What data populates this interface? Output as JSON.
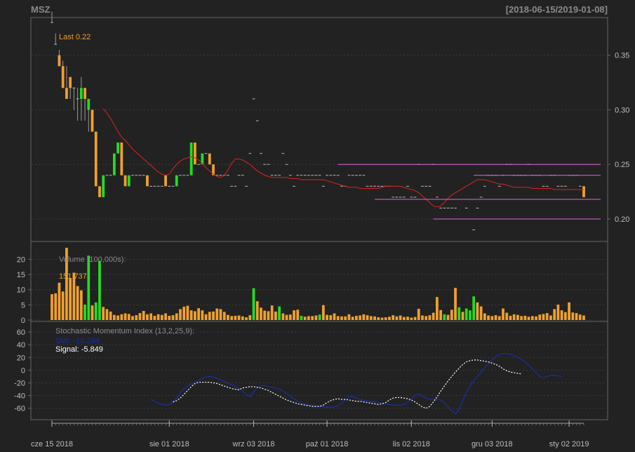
{
  "header": {
    "symbol": "MSZ",
    "date_range": "[2018-06-15/2019-01-08]"
  },
  "colors": {
    "background": "#222222",
    "panel_border": "#666666",
    "grid": "#3c3c3c",
    "up": "#22dd22",
    "down": "#f0a030",
    "ma_line": "#dd2222",
    "support_lines": "#dd66dd",
    "smi_line": "#1a2fa8",
    "signal_line": "#ffffff",
    "label_orange": "#f0a030",
    "label_grey": "#8a8a8a"
  },
  "chart_data": [
    {
      "type": "candlestick",
      "panel": "price",
      "last_label": "Last 0.22",
      "y_ticks": [
        "0.35",
        "0.30",
        "0.25",
        "0.20"
      ],
      "y_tick_values": [
        0.35,
        0.3,
        0.25,
        0.2
      ],
      "ylim": [
        0.182,
        0.38
      ],
      "n_bars": 146,
      "open": [
        0.38,
        0.36,
        0.35,
        0.34,
        0.32,
        0.33,
        0.32,
        0.31,
        0.31,
        0.32,
        0.3,
        0.3,
        0.28,
        0.23,
        0.22,
        0.24,
        0.24,
        0.24,
        0.26,
        0.27,
        0.24,
        0.23,
        0.24,
        0.24,
        0.24,
        0.24,
        0.24,
        0.23,
        0.23,
        0.23,
        0.23,
        0.24,
        0.23,
        0.23,
        0.23,
        0.24,
        0.24,
        0.24,
        0.24,
        0.27,
        0.25,
        0.25,
        0.26,
        0.26,
        0.25,
        0.24,
        0.24,
        0.24,
        0.24,
        0.23,
        0.23,
        0.24,
        0.24,
        0.23,
        0.26,
        0.31,
        0.29,
        0.26,
        0.25,
        0.25,
        0.24,
        0.24,
        0.24,
        0.26,
        0.25,
        0.24,
        0.23,
        0.24,
        0.24,
        0.24,
        0.24,
        0.24,
        0.24,
        0.24,
        0.23,
        0.24,
        0.24,
        0.24,
        0.24,
        0.23,
        0.23,
        0.24,
        0.24,
        0.24,
        0.24,
        0.24,
        0.23,
        0.23,
        0.23,
        0.23,
        0.23,
        0.23,
        0.23,
        0.22,
        0.22,
        0.22,
        0.22,
        0.23,
        0.22,
        0.22,
        0.25,
        0.23,
        0.23,
        0.23,
        0.25,
        0.22,
        0.21,
        0.21,
        0.21,
        0.21,
        0.21,
        0.2,
        0.2,
        0.21,
        0.2,
        0.19,
        0.21,
        0.22,
        0.23,
        0.24,
        0.24,
        0.24,
        0.23,
        0.24,
        0.25,
        0.25,
        0.24,
        0.24,
        0.24,
        0.24,
        0.25,
        0.24,
        0.24,
        0.24,
        0.23,
        0.23,
        0.24,
        0.24,
        0.23,
        0.23,
        0.23,
        0.24,
        0.24,
        0.24,
        0.23,
        0.23
      ],
      "close": [
        0.38,
        0.36,
        0.34,
        0.32,
        0.31,
        0.32,
        0.32,
        0.31,
        0.32,
        0.31,
        0.31,
        0.28,
        0.23,
        0.22,
        0.24,
        0.24,
        0.24,
        0.26,
        0.27,
        0.24,
        0.23,
        0.24,
        0.24,
        0.24,
        0.24,
        0.24,
        0.23,
        0.23,
        0.23,
        0.23,
        0.23,
        0.23,
        0.23,
        0.23,
        0.24,
        0.24,
        0.24,
        0.24,
        0.27,
        0.25,
        0.25,
        0.26,
        0.26,
        0.25,
        0.24,
        0.24,
        0.24,
        0.24,
        0.24,
        0.23,
        0.23,
        0.24,
        0.24,
        0.23,
        0.26,
        0.31,
        0.29,
        0.26,
        0.25,
        0.25,
        0.24,
        0.24,
        0.24,
        0.26,
        0.25,
        0.24,
        0.23,
        0.24,
        0.24,
        0.24,
        0.24,
        0.24,
        0.24,
        0.24,
        0.23,
        0.24,
        0.24,
        0.24,
        0.24,
        0.23,
        0.23,
        0.24,
        0.24,
        0.24,
        0.24,
        0.24,
        0.23,
        0.23,
        0.23,
        0.23,
        0.23,
        0.23,
        0.23,
        0.22,
        0.22,
        0.22,
        0.22,
        0.23,
        0.22,
        0.22,
        0.25,
        0.23,
        0.23,
        0.23,
        0.25,
        0.22,
        0.21,
        0.21,
        0.21,
        0.21,
        0.21,
        0.2,
        0.2,
        0.21,
        0.2,
        0.19,
        0.21,
        0.22,
        0.23,
        0.24,
        0.24,
        0.24,
        0.23,
        0.24,
        0.25,
        0.25,
        0.24,
        0.24,
        0.24,
        0.24,
        0.25,
        0.24,
        0.24,
        0.24,
        0.23,
        0.23,
        0.24,
        0.24,
        0.23,
        0.23,
        0.23,
        0.24,
        0.24,
        0.24,
        0.23,
        0.22
      ],
      "high_extra": [
        0.01,
        0.01,
        0.005,
        0.005,
        0.02,
        0.0,
        0.0,
        0.01,
        0.01,
        0.0,
        0.0,
        0.0,
        0.0,
        0.0,
        0.0,
        0.0,
        0.0,
        0.0,
        0.0,
        0.0,
        0.0,
        0.0,
        0.0,
        0.0,
        0.0,
        0.0,
        0.0,
        0.0,
        0.0,
        0.0,
        0.0,
        0.0,
        0.0,
        0.0,
        0.0,
        0.0,
        0.0,
        0.0,
        0.0,
        0.0,
        0.0,
        0.0,
        0.0,
        0.0,
        0.0,
        0.0,
        0.0,
        0.0,
        0.0,
        0.0,
        0.0,
        0.0,
        0.0,
        0.0,
        0.0,
        0.0,
        0.0,
        0.0,
        0.0,
        0.0,
        0.0,
        0.0,
        0.0,
        0.0,
        0.0,
        0.0,
        0.0,
        0.0,
        0.0,
        0.0,
        0.0,
        0.0,
        0.0,
        0.0,
        0.0,
        0.0,
        0.0,
        0.0,
        0.0,
        0.0,
        0.0,
        0.0,
        0.0,
        0.0,
        0.0,
        0.0,
        0.0,
        0.0,
        0.0,
        0.0,
        0.0,
        0.0,
        0.0,
        0.0,
        0.0,
        0.0,
        0.0,
        0.0,
        0.0,
        0.0,
        0.0,
        0.0,
        0.0,
        0.0,
        0.0,
        0.0,
        0.0,
        0.0,
        0.0,
        0.0,
        0.0,
        0.0,
        0.0,
        0.0,
        0.0,
        0.0,
        0.0,
        0.0,
        0.0,
        0.0,
        0.0,
        0.0,
        0.0,
        0.0,
        0.0,
        0.0,
        0.0,
        0.0,
        0.0,
        0.0,
        0.0,
        0.0,
        0.0,
        0.0,
        0.0,
        0.0,
        0.0,
        0.0,
        0.0,
        0.0,
        0.0,
        0.0,
        0.0,
        0.0,
        0.0,
        0.0
      ],
      "low_extra": [
        0.0,
        0.0,
        0.0,
        0.0,
        0.0,
        0.01,
        0.02,
        0.02,
        0.02,
        0.02,
        0.02,
        0.0,
        0.0,
        0.0,
        0.0,
        0.0,
        0.0,
        0.0,
        0.0,
        0.0,
        0.0,
        0.0,
        0.0,
        0.0,
        0.0,
        0.0,
        0.0,
        0.0,
        0.0,
        0.0,
        0.0,
        0.0,
        0.0,
        0.0,
        0.0,
        0.0,
        0.0,
        0.0,
        0.0,
        0.0,
        0.0,
        0.0,
        0.0,
        0.0,
        0.0,
        0.0,
        0.0,
        0.0,
        0.0,
        0.0,
        0.0,
        0.0,
        0.0,
        0.0,
        0.0,
        0.0,
        0.0,
        0.0,
        0.0,
        0.0,
        0.0,
        0.0,
        0.0,
        0.0,
        0.0,
        0.0,
        0.0,
        0.0,
        0.0,
        0.0,
        0.0,
        0.0,
        0.0,
        0.0,
        0.0,
        0.0,
        0.0,
        0.0,
        0.0,
        0.0,
        0.0,
        0.0,
        0.0,
        0.0,
        0.0,
        0.0,
        0.0,
        0.0,
        0.0,
        0.0,
        0.0,
        0.0,
        0.0,
        0.0,
        0.0,
        0.0,
        0.0,
        0.0,
        0.0,
        0.0,
        0.0,
        0.0,
        0.0,
        0.0,
        0.0,
        0.0,
        0.0,
        0.0,
        0.0,
        0.0,
        0.0,
        0.0,
        0.0,
        0.0,
        0.0,
        0.0,
        0.0,
        0.0,
        0.0,
        0.0,
        0.0,
        0.0,
        0.0,
        0.0,
        0.0,
        0.0,
        0.0,
        0.0,
        0.0,
        0.0,
        0.0,
        0.0,
        0.0,
        0.0,
        0.0,
        0.0,
        0.0,
        0.0,
        0.0,
        0.0,
        0.0,
        0.0,
        0.0,
        0.0,
        0.0,
        0.0
      ],
      "moving_average": {
        "start_bar": 14,
        "values": [
          0.301,
          0.297,
          0.292,
          0.286,
          0.28,
          0.275,
          0.272,
          0.268,
          0.264,
          0.261,
          0.258,
          0.255,
          0.252,
          0.249,
          0.246,
          0.243,
          0.241,
          0.24,
          0.241,
          0.246,
          0.25,
          0.253,
          0.255,
          0.256,
          0.257,
          0.256,
          0.254,
          0.251,
          0.247,
          0.244,
          0.241,
          0.239,
          0.238,
          0.24,
          0.245,
          0.251,
          0.255,
          0.255,
          0.254,
          0.252,
          0.25,
          0.247,
          0.244,
          0.242,
          0.24,
          0.239,
          0.238,
          0.238,
          0.238,
          0.238,
          0.238,
          0.237,
          0.237,
          0.237,
          0.236,
          0.236,
          0.236,
          0.236,
          0.236,
          0.236,
          0.236,
          0.235,
          0.234,
          0.233,
          0.232,
          0.231,
          0.23,
          0.229,
          0.229,
          0.229,
          0.228,
          0.228,
          0.228,
          0.228,
          0.228,
          0.228,
          0.229,
          0.23,
          0.23,
          0.23,
          0.23,
          0.23,
          0.229,
          0.228,
          0.227,
          0.226,
          0.224,
          0.221,
          0.218,
          0.215,
          0.212,
          0.211,
          0.212,
          0.215,
          0.219,
          0.222,
          0.224,
          0.226,
          0.228,
          0.23,
          0.232,
          0.234,
          0.236,
          0.236,
          0.236,
          0.235,
          0.234,
          0.233,
          0.232,
          0.232,
          0.231,
          0.23,
          0.229,
          0.229,
          0.229,
          0.229,
          0.229,
          0.228,
          0.228,
          0.228,
          0.228,
          0.228,
          0.228,
          0.227,
          0.227,
          0.227,
          0.227,
          0.227,
          0.227,
          0.227,
          0.227,
          0.227
        ]
      },
      "support_lines": [
        {
          "y": 0.25,
          "from_bar": 78,
          "to_bar": 145
        },
        {
          "y": 0.24,
          "from_bar": 115,
          "to_bar": 145
        },
        {
          "y": 0.218,
          "from_bar": 88,
          "to_bar": 145
        },
        {
          "y": 0.2,
          "from_bar": 104,
          "to_bar": 145
        }
      ]
    },
    {
      "type": "bar",
      "panel": "volume",
      "label": "Volume (100,000s):",
      "last_label": "151,737",
      "y_ticks": [
        "20",
        "15",
        "10",
        "5",
        "0"
      ],
      "y_tick_values": [
        20,
        15,
        10,
        5,
        0
      ],
      "ylim": [
        0,
        24.5
      ],
      "values": [
        8.5,
        8.8,
        12.3,
        9.4,
        23.8,
        13.8,
        15.6,
        11.2,
        9.8,
        5.1,
        21.2,
        4.8,
        5.8,
        19.5,
        4.3,
        3.6,
        2.8,
        1.7,
        1.5,
        1.9,
        2.2,
        2.0,
        1.3,
        1.6,
        2.3,
        3.0,
        1.9,
        2.2,
        1.4,
        1.9,
        1.7,
        2.2,
        1.4,
        1.6,
        2.2,
        3.6,
        4.4,
        4.7,
        3.2,
        2.9,
        3.9,
        3.2,
        1.9,
        2.7,
        2.8,
        3.8,
        3.6,
        2.7,
        1.7,
        1.3,
        1.4,
        1.5,
        1.2,
        0.9,
        1.6,
        10.5,
        6.2,
        4.1,
        3.1,
        2.9,
        4.8,
        2.8,
        4.5,
        2.2,
        1.7,
        1.8,
        3.2,
        3.4,
        1.4,
        1.1,
        1.3,
        1.3,
        1.5,
        1.8,
        4.9,
        1.7,
        1.6,
        2.2,
        1.3,
        1.2,
        1.2,
        1.9,
        1.1,
        1.4,
        1.5,
        1.9,
        1.6,
        1.3,
        1.2,
        0.9,
        0.8,
        0.9,
        1.1,
        1.6,
        1.2,
        1.5,
        1.0,
        1.1,
        0.8,
        1.0,
        3.7,
        1.5,
        1.3,
        1.6,
        2.4,
        7.6,
        3.3,
        1.9,
        1.7,
        3.4,
        10.6,
        4.2,
        2.7,
        3.8,
        3.2,
        7.8,
        5.8,
        4.5,
        2.2,
        1.5,
        1.3,
        1.6,
        1.3,
        3.8,
        2.4,
        1.4,
        1.9,
        1.7,
        1.3,
        1.4,
        1.1,
        1.3,
        1.2,
        1.8,
        2.0,
        2.3,
        1.5,
        3.6,
        5.1,
        3.2,
        2.6,
        5.8,
        2.5,
        2.3,
        1.8,
        1.5
      ],
      "up_bars": [
        9,
        10,
        12,
        13,
        55,
        62,
        68,
        73,
        107,
        111,
        113,
        114,
        115
      ]
    },
    {
      "type": "line",
      "panel": "smi",
      "label": "Stochastic Momentum Index (13,2,25,9):",
      "smi_label": "SMI: -10.294",
      "signal_label": "Signal: -5.849",
      "y_ticks": [
        "60",
        "40",
        "20",
        "0",
        "-20",
        "-40",
        "-60"
      ],
      "y_tick_values": [
        60,
        40,
        20,
        0,
        -20,
        -40,
        -60
      ],
      "ylim": [
        -78,
        70
      ],
      "smi": {
        "start_bar": 27,
        "values": [
          -46,
          -49,
          -52,
          -54,
          -55,
          -54,
          -50,
          -44,
          -36,
          -29,
          -25,
          -22,
          -19,
          -16,
          -13,
          -11,
          -10,
          -11,
          -13,
          -15,
          -18,
          -21,
          -23,
          -25,
          -29,
          -33,
          -38,
          -42,
          -34,
          -28,
          -24,
          -24,
          -26,
          -27,
          -28,
          -30,
          -33,
          -37,
          -41,
          -45,
          -49,
          -52,
          -54,
          -55,
          -56,
          -57,
          -57,
          -58,
          -58,
          -58,
          -58,
          -56,
          -52,
          -47,
          -42,
          -42,
          -44,
          -46,
          -47,
          -48,
          -49,
          -50,
          -51,
          -52,
          -53,
          -54,
          -55,
          -55,
          -55,
          -54,
          -50,
          -45,
          -40,
          -37,
          -40,
          -44,
          -46,
          -46,
          -46,
          -47,
          -52,
          -58,
          -64,
          -69,
          -62,
          -48,
          -35,
          -25,
          -17,
          -10,
          -3,
          4,
          10,
          16,
          21,
          25,
          26,
          26,
          25,
          23,
          20,
          17,
          13,
          8,
          2,
          -4,
          -10,
          -12,
          -10,
          -8,
          -8,
          -9,
          -10
        ],
        "shown_last": -10.294
      },
      "signal": {
        "start_bar": 33,
        "values": [
          -50,
          -48,
          -44,
          -38,
          -32,
          -26,
          -21,
          -19,
          -19,
          -19,
          -19,
          -20,
          -21,
          -23,
          -25,
          -27,
          -29,
          -30,
          -31,
          -28,
          -27,
          -26,
          -26,
          -27,
          -28,
          -30,
          -32,
          -35,
          -38,
          -41,
          -44,
          -47,
          -49,
          -51,
          -53,
          -54,
          -55,
          -56,
          -57,
          -57,
          -57,
          -55,
          -51,
          -48,
          -46,
          -45,
          -46,
          -46,
          -47,
          -48,
          -49,
          -49,
          -50,
          -51,
          -52,
          -53,
          -54,
          -53,
          -51,
          -47,
          -44,
          -43,
          -43,
          -44,
          -45,
          -47,
          -50,
          -54,
          -58,
          -60,
          -57,
          -50,
          -42,
          -33,
          -25,
          -17,
          -10,
          -3,
          3,
          9,
          13,
          15,
          16,
          16,
          15,
          14,
          13,
          11,
          9,
          6,
          2,
          -1,
          -3,
          -4,
          -5,
          -6
        ],
        "shown_last": -5.849
      }
    }
  ],
  "x_axis": {
    "labels": [
      "cze 15 2018",
      "sie 01 2018",
      "wrz 03 2018",
      "paź 01 2018",
      "lis 02 2018",
      "gru 03 2018",
      "sty 02 2019"
    ],
    "label_bars": [
      0,
      32,
      55,
      75,
      98,
      120,
      141
    ]
  }
}
